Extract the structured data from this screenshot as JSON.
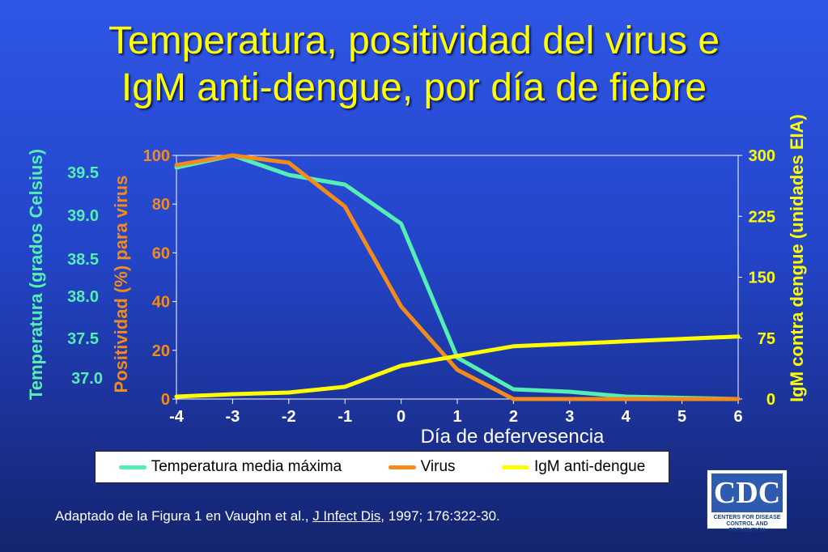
{
  "title": {
    "line1": "Temperatura, positividad del virus e",
    "line2": "IgM anti-dengue, por día de fiebre"
  },
  "chart_data": {
    "type": "line",
    "xlabel": "Día de defervesencia",
    "x": [
      -4,
      -3,
      -2,
      -1,
      0,
      1,
      2,
      3,
      4,
      5,
      6
    ],
    "axes": {
      "temperature": {
        "label": "Temperatura (grados Celsius)",
        "ticks": [
          "39.5",
          "39.0",
          "38.5",
          "38.0",
          "37.5",
          "37.0"
        ],
        "color": "#55efb4"
      },
      "virus": {
        "label": "Positividad (%) para virus",
        "ylim": [
          0,
          100
        ],
        "ticks": [
          "100",
          "80",
          "60",
          "40",
          "20",
          "0"
        ],
        "color": "#f28a1c"
      },
      "igm": {
        "label": "IgM contra dengue (unidades EIA)",
        "ylim": [
          0,
          300
        ],
        "ticks": [
          "300",
          "225",
          "150",
          "75",
          "0"
        ],
        "color": "#ffff00"
      }
    },
    "series": [
      {
        "name": "Temperatura media máxima",
        "axis": "virus",
        "color": "#55efb4",
        "values": [
          95,
          100,
          92,
          88,
          72,
          17,
          4,
          3,
          1,
          0.5,
          0
        ]
      },
      {
        "name": "Virus",
        "axis": "virus",
        "color": "#f28a1c",
        "values": [
          96,
          100,
          97,
          79,
          38,
          12,
          0,
          0,
          0,
          0,
          0
        ]
      },
      {
        "name": "IgM anti-dengue",
        "axis": "igm",
        "color": "#ffff00",
        "values": [
          3,
          6,
          8,
          15,
          41,
          53,
          65,
          68,
          71,
          74,
          77
        ]
      }
    ],
    "grid": false,
    "legend": "bottom"
  },
  "citation": {
    "prefix": "Adaptado de la Figura 1 en Vaughn et  al., ",
    "journal": "J Infect Dis",
    "suffix": ", 1997; 176:322-30."
  },
  "logo": {
    "text": "CDC",
    "sub1": "CENTERS FOR DISEASE",
    "sub2": "CONTROL AND PREVENTION"
  }
}
